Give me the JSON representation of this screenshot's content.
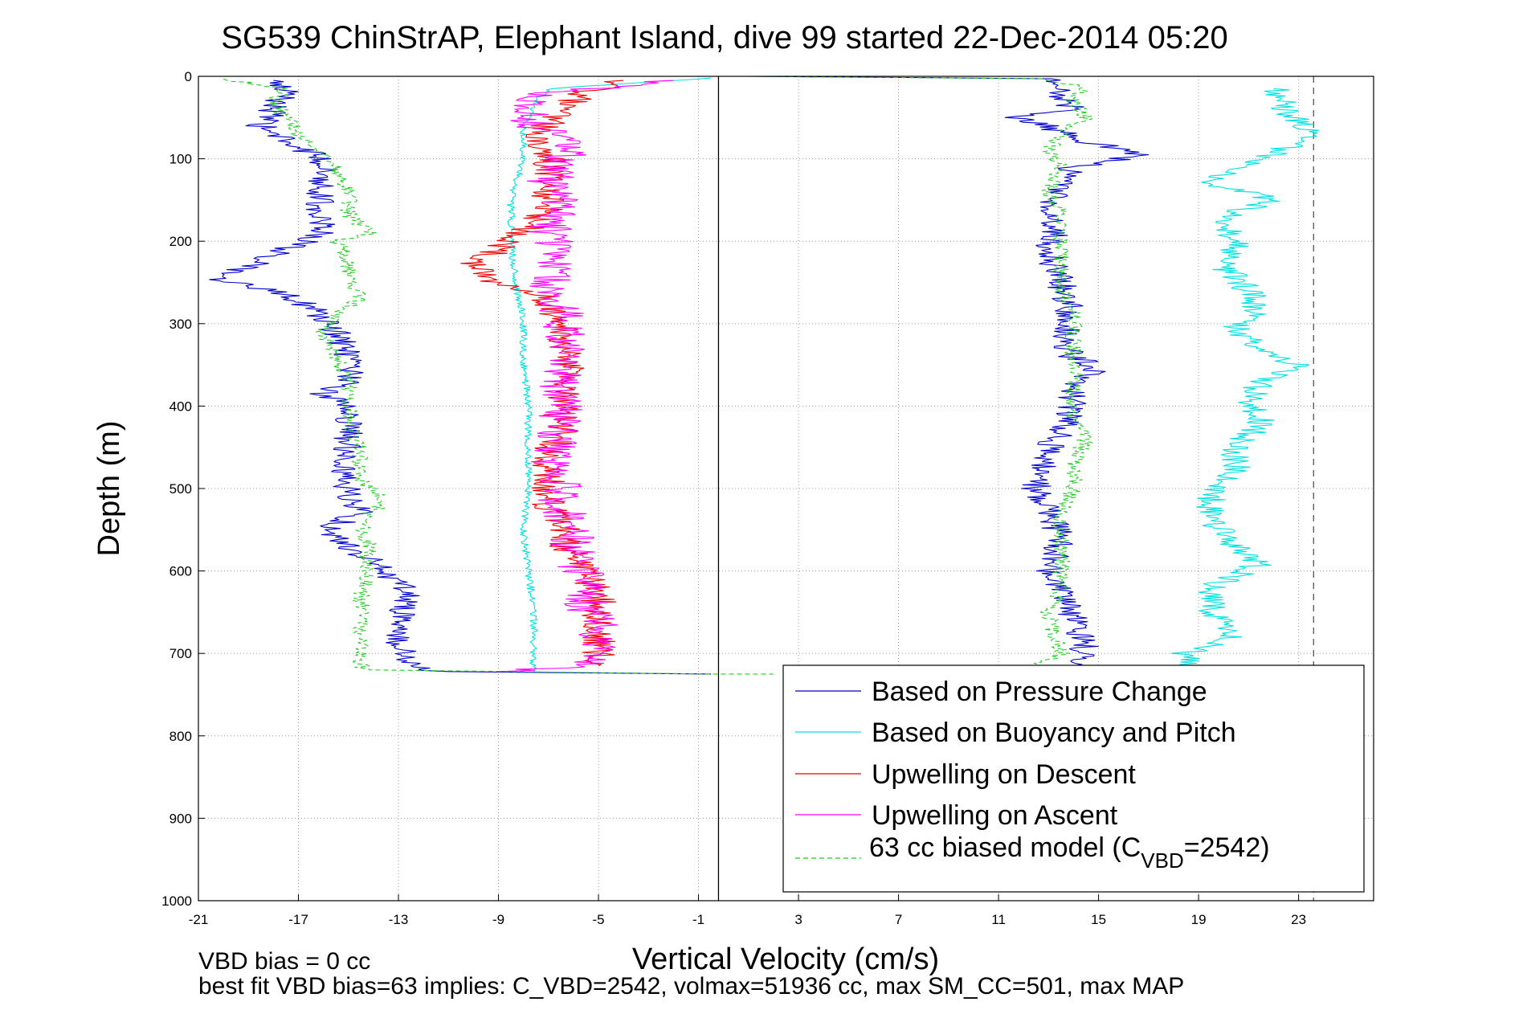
{
  "chart_data": {
    "type": "line",
    "title": "SG539 ChinStrAP, Elephant Island, dive 99 started 22-Dec-2014 05:20",
    "xlabel": "Vertical Velocity (cm/s)",
    "ylabel": "Depth (m)",
    "xlim": [
      -21,
      26
    ],
    "ylim": [
      0,
      1000
    ],
    "y_reversed": true,
    "x_ticks": [
      -21,
      -17,
      -13,
      -9,
      -5,
      -1,
      3,
      7,
      11,
      15,
      19,
      23
    ],
    "y_ticks": [
      0,
      100,
      200,
      300,
      400,
      500,
      600,
      700,
      800,
      900,
      1000
    ],
    "grid": true,
    "legend_position": "bottom-right",
    "vertical_lines": [
      {
        "x": -0.2,
        "style": "solid",
        "color": "#000000"
      },
      {
        "x": 23.6,
        "style": "dashed",
        "color": "#555555"
      }
    ],
    "series": [
      {
        "name": "Based on Pressure Change",
        "color": "#0000cc",
        "style": "solid",
        "noise": 0.6,
        "points": [
          [
            -18,
            5
          ],
          [
            -17.5,
            20
          ],
          [
            -18,
            40
          ],
          [
            -18.5,
            60
          ],
          [
            -17.5,
            80
          ],
          [
            -16,
            100
          ],
          [
            -16,
            130
          ],
          [
            -16.2,
            160
          ],
          [
            -16,
            190
          ],
          [
            -17.5,
            210
          ],
          [
            -19,
            230
          ],
          [
            -20.5,
            245
          ],
          [
            -18,
            260
          ],
          [
            -16.5,
            280
          ],
          [
            -15.5,
            310
          ],
          [
            -15,
            340
          ],
          [
            -15,
            370
          ],
          [
            -16,
            385
          ],
          [
            -15,
            400
          ],
          [
            -15,
            430
          ],
          [
            -15,
            460
          ],
          [
            -15.2,
            490
          ],
          [
            -15,
            510
          ],
          [
            -14.5,
            530
          ],
          [
            -16,
            550
          ],
          [
            -14.5,
            580
          ],
          [
            -13.5,
            600
          ],
          [
            -12.5,
            630
          ],
          [
            -13,
            660
          ],
          [
            -13,
            690
          ],
          [
            -12.5,
            715
          ],
          [
            -11.5,
            722
          ],
          [
            -0.5,
            725
          ]
        ]
      },
      {
        "name": "",
        "color": "#0000cc",
        "style": "solid",
        "noise": 0.6,
        "points": [
          [
            1,
            0
          ],
          [
            13,
            3
          ],
          [
            13.5,
            20
          ],
          [
            14,
            40
          ],
          [
            11.5,
            50
          ],
          [
            13,
            60
          ],
          [
            14,
            75
          ],
          [
            16.8,
            95
          ],
          [
            14,
            110
          ],
          [
            13.5,
            130
          ],
          [
            13,
            160
          ],
          [
            13.2,
            190
          ],
          [
            13,
            220
          ],
          [
            13.5,
            250
          ],
          [
            13.8,
            280
          ],
          [
            14,
            300
          ],
          [
            13.5,
            320
          ],
          [
            14,
            340
          ],
          [
            15,
            355
          ],
          [
            14,
            370
          ],
          [
            14,
            400
          ],
          [
            13.5,
            430
          ],
          [
            12.8,
            460
          ],
          [
            12.5,
            500
          ],
          [
            13,
            530
          ],
          [
            13.5,
            560
          ],
          [
            13,
            600
          ],
          [
            13.5,
            630
          ],
          [
            14,
            660
          ],
          [
            14.5,
            690
          ],
          [
            14,
            715
          ]
        ]
      },
      {
        "name": "Based on Buoyancy and Pitch",
        "color": "#00e0e0",
        "style": "solid",
        "noise": 0.15,
        "points": [
          [
            -0.5,
            2
          ],
          [
            -7,
            15
          ],
          [
            -7.5,
            30
          ],
          [
            -8,
            60
          ],
          [
            -8,
            100
          ],
          [
            -8.5,
            150
          ],
          [
            -8.5,
            200
          ],
          [
            -8.3,
            250
          ],
          [
            -8,
            300
          ],
          [
            -8,
            350
          ],
          [
            -7.8,
            400
          ],
          [
            -7.8,
            450
          ],
          [
            -7.8,
            500
          ],
          [
            -8,
            550
          ],
          [
            -7.8,
            600
          ],
          [
            -7.6,
            650
          ],
          [
            -7.6,
            700
          ],
          [
            -7.6,
            722
          ]
        ]
      },
      {
        "name": "",
        "color": "#00e0e0",
        "style": "solid",
        "noise": 0.6,
        "points": [
          [
            22,
            15
          ],
          [
            22.5,
            40
          ],
          [
            23.5,
            70
          ],
          [
            22,
            95
          ],
          [
            20.5,
            110
          ],
          [
            19.5,
            130
          ],
          [
            22,
            150
          ],
          [
            20,
            170
          ],
          [
            20.5,
            200
          ],
          [
            20,
            230
          ],
          [
            21,
            260
          ],
          [
            21.5,
            290
          ],
          [
            20.5,
            305
          ],
          [
            21.5,
            330
          ],
          [
            23,
            350
          ],
          [
            21.5,
            370
          ],
          [
            21,
            400
          ],
          [
            21.5,
            420
          ],
          [
            20.5,
            450
          ],
          [
            20.5,
            480
          ],
          [
            19.5,
            500
          ],
          [
            19.5,
            530
          ],
          [
            20,
            560
          ],
          [
            21.5,
            590
          ],
          [
            19.5,
            620
          ],
          [
            19.5,
            650
          ],
          [
            20.5,
            680
          ],
          [
            18.5,
            700
          ],
          [
            18.5,
            715
          ]
        ]
      },
      {
        "name": "Upwelling on Descent",
        "color": "#ee0000",
        "style": "solid",
        "noise": 0.7,
        "points": [
          [
            -4,
            5
          ],
          [
            -5.5,
            20
          ],
          [
            -6.5,
            40
          ],
          [
            -7,
            60
          ],
          [
            -7.5,
            80
          ],
          [
            -7,
            100
          ],
          [
            -7,
            130
          ],
          [
            -7,
            160
          ],
          [
            -8,
            190
          ],
          [
            -9,
            210
          ],
          [
            -10,
            230
          ],
          [
            -9,
            250
          ],
          [
            -7,
            270
          ],
          [
            -6.5,
            300
          ],
          [
            -6.5,
            330
          ],
          [
            -6,
            360
          ],
          [
            -6.5,
            400
          ],
          [
            -6.5,
            430
          ],
          [
            -7,
            460
          ],
          [
            -7,
            490
          ],
          [
            -7.2,
            510
          ],
          [
            -6.5,
            540
          ],
          [
            -6.3,
            570
          ],
          [
            -5.7,
            600
          ],
          [
            -5,
            630
          ],
          [
            -5,
            660
          ],
          [
            -5,
            690
          ],
          [
            -5,
            715
          ]
        ]
      },
      {
        "name": "Upwelling on Ascent",
        "color": "#ff00ff",
        "style": "solid",
        "noise": 0.9,
        "points": [
          [
            -2,
            5
          ],
          [
            -7,
            20
          ],
          [
            -8,
            40
          ],
          [
            -7.5,
            60
          ],
          [
            -6,
            80
          ],
          [
            -6.5,
            100
          ],
          [
            -7,
            130
          ],
          [
            -6.5,
            160
          ],
          [
            -7,
            190
          ],
          [
            -6.5,
            220
          ],
          [
            -7,
            250
          ],
          [
            -6.5,
            280
          ],
          [
            -6.5,
            310
          ],
          [
            -6,
            340
          ],
          [
            -6.5,
            370
          ],
          [
            -6.5,
            400
          ],
          [
            -6.5,
            430
          ],
          [
            -7,
            460
          ],
          [
            -6.5,
            490
          ],
          [
            -6.5,
            520
          ],
          [
            -6,
            550
          ],
          [
            -6,
            580
          ],
          [
            -5.5,
            610
          ],
          [
            -5.5,
            640
          ],
          [
            -5,
            670
          ],
          [
            -5,
            700
          ],
          [
            -5.5,
            715
          ],
          [
            -9,
            722
          ]
        ]
      },
      {
        "name": "63 cc biased model (C_VBD=2542)",
        "color": "#22cc22",
        "style": "dashed",
        "noise": 0.35,
        "points": [
          [
            -20,
            3
          ],
          [
            -17.5,
            15
          ],
          [
            -18,
            30
          ],
          [
            -17.5,
            50
          ],
          [
            -17,
            70
          ],
          [
            -16,
            90
          ],
          [
            -15.5,
            110
          ],
          [
            -15,
            140
          ],
          [
            -15,
            170
          ],
          [
            -14,
            190
          ],
          [
            -15.5,
            200
          ],
          [
            -15,
            220
          ],
          [
            -15,
            250
          ],
          [
            -14.5,
            270
          ],
          [
            -15.5,
            290
          ],
          [
            -16,
            310
          ],
          [
            -15.5,
            340
          ],
          [
            -15,
            370
          ],
          [
            -15,
            400
          ],
          [
            -14.8,
            430
          ],
          [
            -14.5,
            460
          ],
          [
            -14.5,
            490
          ],
          [
            -13.5,
            515
          ],
          [
            -14.5,
            540
          ],
          [
            -14.2,
            570
          ],
          [
            -14.2,
            600
          ],
          [
            -14.5,
            630
          ],
          [
            -14.5,
            660
          ],
          [
            -14.5,
            690
          ],
          [
            -14.5,
            720
          ],
          [
            -0.5,
            725
          ],
          [
            2,
            725
          ]
        ]
      },
      {
        "name": "",
        "color": "#22cc22",
        "style": "dashed",
        "noise": 0.35,
        "points": [
          [
            1,
            0
          ],
          [
            13,
            3
          ],
          [
            14.5,
            15
          ],
          [
            14,
            30
          ],
          [
            14.5,
            50
          ],
          [
            13.5,
            70
          ],
          [
            13,
            90
          ],
          [
            13.5,
            110
          ],
          [
            13,
            140
          ],
          [
            13.5,
            170
          ],
          [
            13.5,
            200
          ],
          [
            13.5,
            230
          ],
          [
            13.5,
            260
          ],
          [
            14,
            290
          ],
          [
            14,
            320
          ],
          [
            14,
            350
          ],
          [
            14,
            380
          ],
          [
            14,
            410
          ],
          [
            14.5,
            440
          ],
          [
            14,
            470
          ],
          [
            14,
            500
          ],
          [
            13.5,
            530
          ],
          [
            13.5,
            560
          ],
          [
            13.5,
            590
          ],
          [
            13.5,
            620
          ],
          [
            13,
            650
          ],
          [
            13.2,
            680
          ],
          [
            13.5,
            700
          ],
          [
            12.5,
            715
          ]
        ]
      }
    ],
    "legend": {
      "entries": [
        {
          "label": "Based on Pressure Change",
          "color": "#0000cc",
          "style": "solid"
        },
        {
          "label": "Based on Buoyancy and Pitch",
          "color": "#00e0e0",
          "style": "solid"
        },
        {
          "label": "Upwelling on Descent",
          "color": "#ee0000",
          "style": "solid"
        },
        {
          "label": "Upwelling on Ascent",
          "color": "#ff00ff",
          "style": "solid"
        },
        {
          "label_main": "63 cc biased model (C",
          "label_sub": "VBD",
          "label_tail": "=2542)",
          "color": "#22cc22",
          "style": "dashed"
        }
      ]
    },
    "annotations": [
      "VBD bias = 0 cc",
      "best fit VBD bias=63 implies: C_VBD=2542, volmax=51936 cc, max SM_CC=501, max MAP"
    ]
  }
}
